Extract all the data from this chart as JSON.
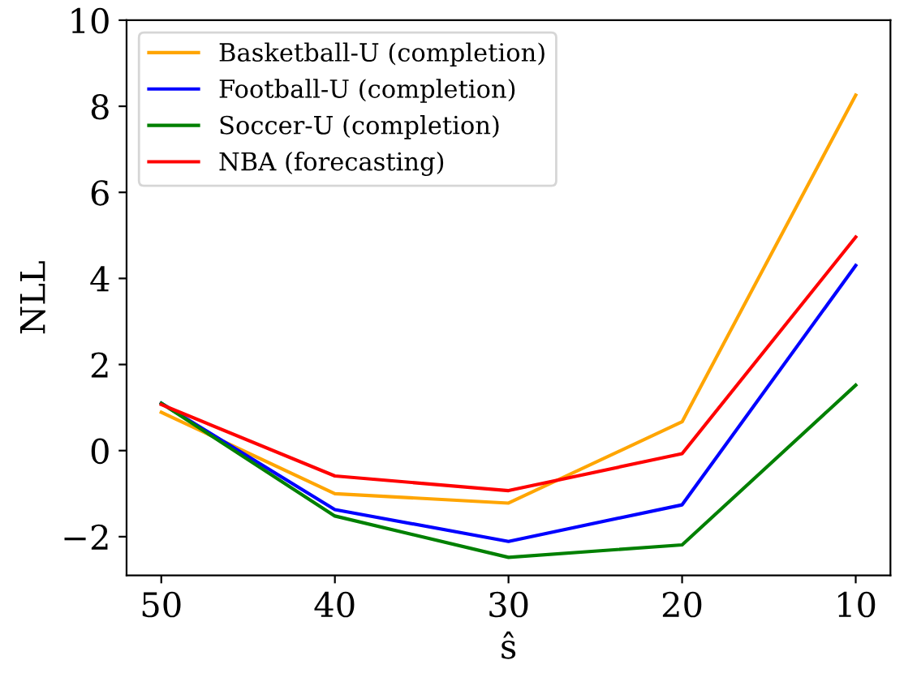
{
  "chart_data": {
    "type": "line",
    "xlabel": "ŝ",
    "ylabel": "NLL",
    "x": [
      50,
      40,
      30,
      20,
      10
    ],
    "series": [
      {
        "name": "Basketball-U (completion)",
        "color": "#ffa500",
        "values": [
          0.89,
          -1.0,
          -1.22,
          0.67,
          8.26
        ]
      },
      {
        "name": "Football-U (completion)",
        "color": "#0000ff",
        "values": [
          1.1,
          -1.37,
          -2.11,
          -1.26,
          4.3
        ]
      },
      {
        "name": "Soccer-U (completion)",
        "color": "#008000",
        "values": [
          1.1,
          -1.52,
          -2.48,
          -2.19,
          1.52
        ]
      },
      {
        "name": "NBA (forecasting)",
        "color": "#ff0000",
        "values": [
          1.07,
          -0.59,
          -0.93,
          -0.07,
          4.96
        ]
      }
    ],
    "xlim": [
      52,
      8
    ],
    "xticks": [
      50,
      40,
      30,
      20,
      10
    ],
    "ylim": [
      -2.9,
      10
    ],
    "yticks": [
      -2,
      0,
      2,
      4,
      6,
      8,
      10
    ],
    "grid": false,
    "legend": "top left",
    "marker": "none",
    "line_style": "solid"
  }
}
